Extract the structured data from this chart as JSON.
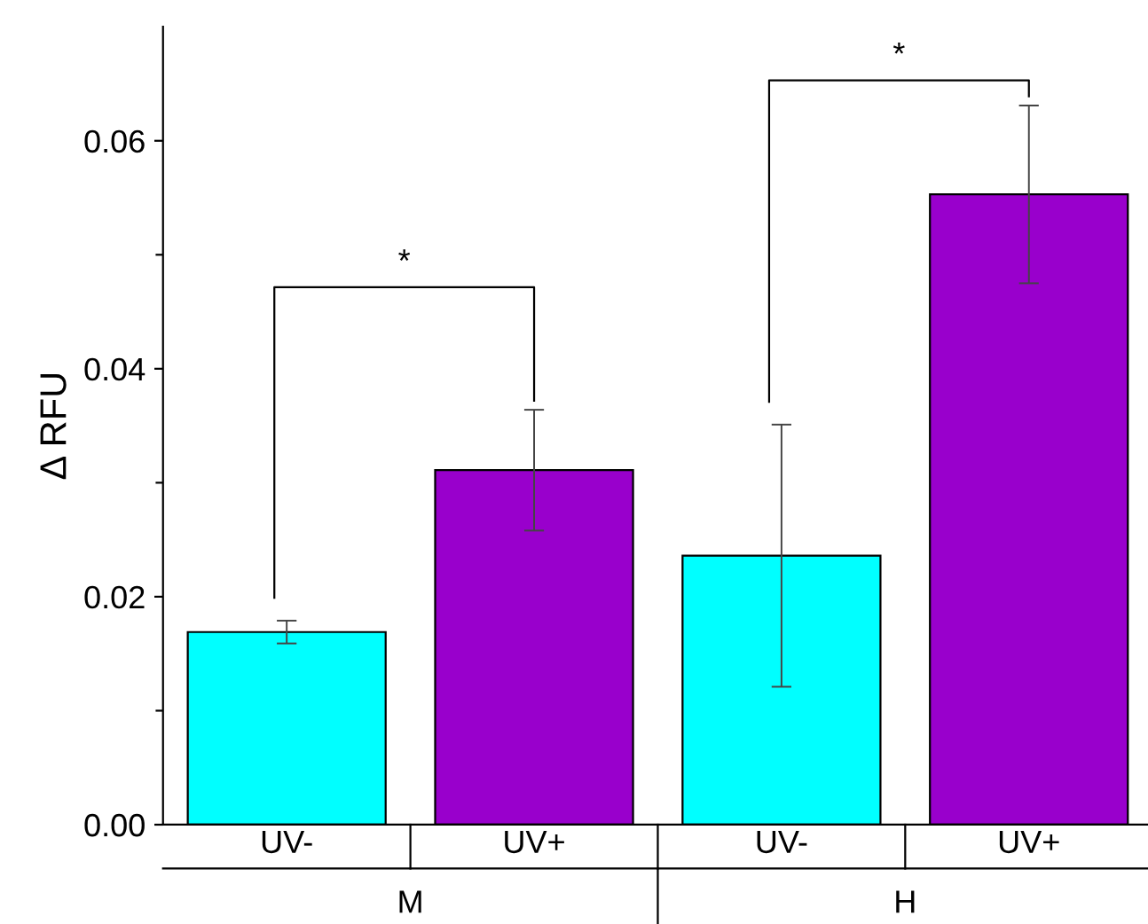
{
  "chart_data": {
    "type": "bar",
    "ylabel": "Δ RFU",
    "categories": [
      "UV-",
      "UV+",
      "UV-",
      "UV+"
    ],
    "values": [
      0.0169,
      0.0311,
      0.0236,
      0.0553
    ],
    "errors": [
      0.001,
      0.0053,
      0.0115,
      0.0078
    ],
    "colors": [
      "#00ffff",
      "#9900cc",
      "#00ffff",
      "#9900cc"
    ],
    "ylim": [
      0,
      0.07
    ],
    "yticks": [
      {
        "value": 0,
        "label": "0.00"
      },
      {
        "value": 0.01,
        "label": null
      },
      {
        "value": 0.02,
        "label": "0.02"
      },
      {
        "value": 0.03,
        "label": null
      },
      {
        "value": 0.04,
        "label": "0.04"
      },
      {
        "value": 0.05,
        "label": null
      },
      {
        "value": 0.06,
        "label": "0.06"
      }
    ],
    "annotations": [
      "*",
      "*",
      "M",
      "H"
    ],
    "grid": false,
    "legend": false
  }
}
